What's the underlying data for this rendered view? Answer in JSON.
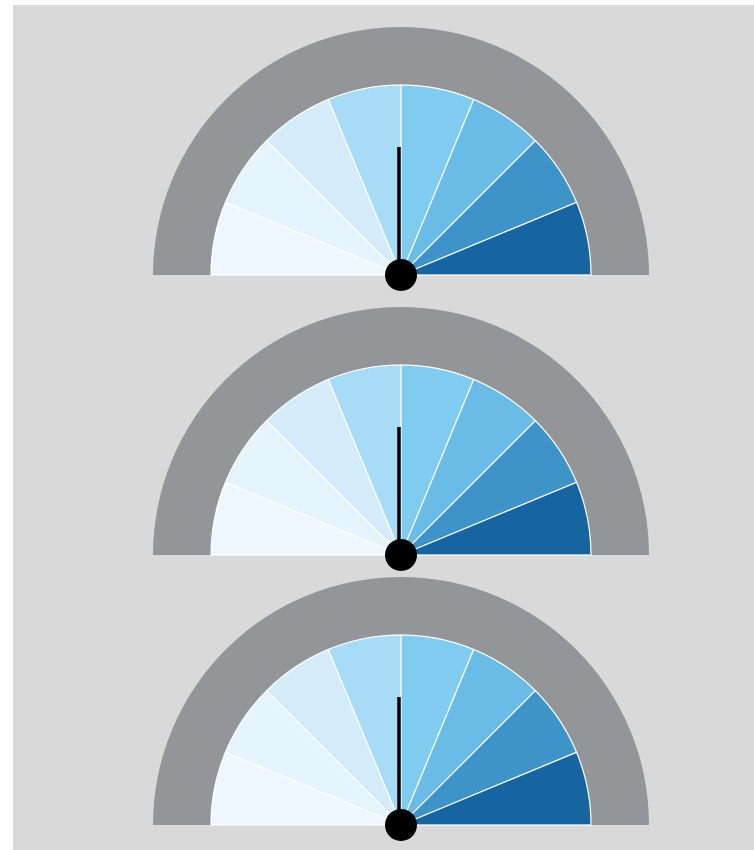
{
  "panel": {
    "background": "#d9d9d9"
  },
  "gauge_style": {
    "rim_color": "#939598",
    "segment_colors": [
      "#eef7fd",
      "#e4f3fc",
      "#d4ebf9",
      "#a8dbf6",
      "#80ccf1",
      "#6abbe6",
      "#3e94c9",
      "#1665a0"
    ],
    "segment_divider_color": "#ffffff",
    "needle_color": "#000000",
    "hub_color": "#000000"
  },
  "gauges": [
    {
      "id": "gauge-1",
      "segments": 8,
      "needle_value": 0.5
    },
    {
      "id": "gauge-2",
      "segments": 8,
      "needle_value": 0.5
    },
    {
      "id": "gauge-3",
      "segments": 8,
      "needle_value": 0.5
    }
  ]
}
